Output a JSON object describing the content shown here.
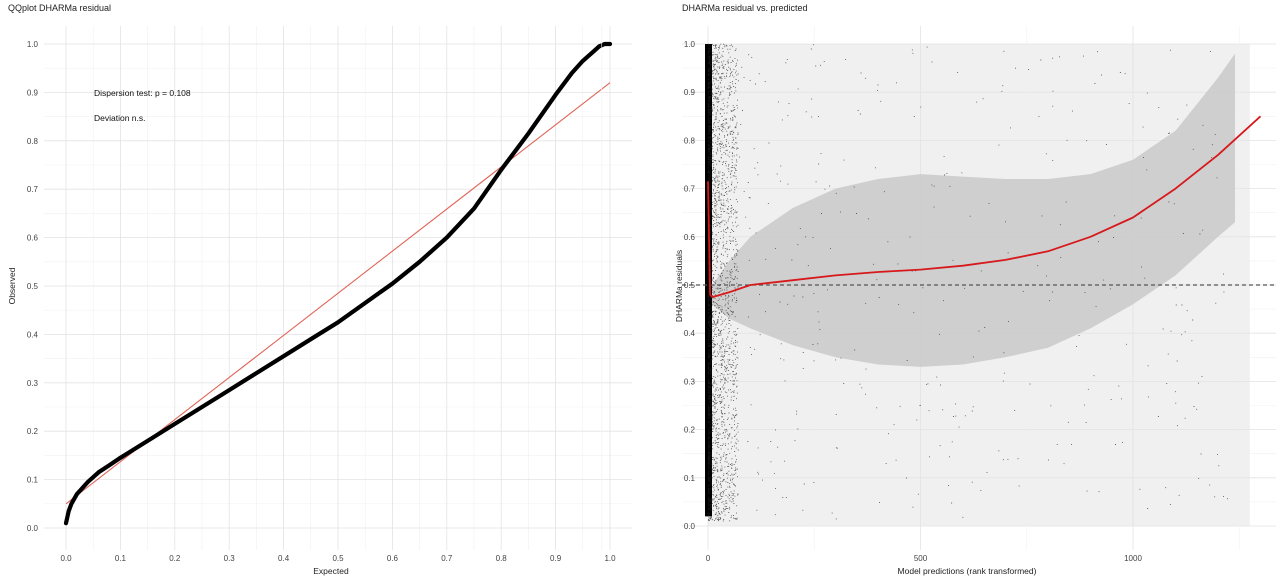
{
  "chart_data": [
    {
      "type": "line",
      "title": "QQplot DHARMa residual",
      "xlabel": "Expected",
      "ylabel": "Observed",
      "xlim": [
        0,
        1
      ],
      "ylim": [
        0,
        1
      ],
      "xticks": [
        "0.0",
        "0.1",
        "0.2",
        "0.3",
        "0.4",
        "0.5",
        "0.6",
        "0.7",
        "0.8",
        "0.9",
        "1.0"
      ],
      "yticks": [
        "0.0",
        "0.1",
        "0.2",
        "0.3",
        "0.4",
        "0.5",
        "0.6",
        "0.7",
        "0.8",
        "0.9",
        "1.0"
      ],
      "grid": true,
      "annotations": [
        "Dispersion test: p = 0.108",
        "Deviation n.s."
      ],
      "series": [
        {
          "color": "#000000",
          "x": [
            0.0,
            0.005,
            0.01,
            0.02,
            0.04,
            0.06,
            0.08,
            0.1,
            0.15,
            0.2,
            0.25,
            0.3,
            0.35,
            0.4,
            0.45,
            0.5,
            0.55,
            0.6,
            0.65,
            0.7,
            0.75,
            0.8,
            0.85,
            0.9,
            0.93,
            0.95,
            0.97,
            0.98,
            0.99,
            1.0
          ],
          "y": [
            0.01,
            0.035,
            0.05,
            0.07,
            0.095,
            0.115,
            0.13,
            0.145,
            0.18,
            0.215,
            0.25,
            0.285,
            0.32,
            0.355,
            0.39,
            0.425,
            0.465,
            0.505,
            0.55,
            0.6,
            0.66,
            0.74,
            0.815,
            0.895,
            0.94,
            0.965,
            0.985,
            0.995,
            1.0,
            1.0
          ]
        },
        {
          "color": "#e0645a",
          "x": [
            0.0,
            1.0
          ],
          "y": [
            0.05,
            0.92
          ]
        }
      ]
    },
    {
      "type": "scatter",
      "title": "DHARMa residual vs. predicted",
      "xlabel": "Model predictions (rank transformed)",
      "ylabel": "DHARMa residuals",
      "xlim": [
        -60,
        1330
      ],
      "ylim": [
        0,
        1
      ],
      "xticks": [
        "0",
        "500",
        "1000"
      ],
      "yticks": [
        "0.0",
        "0.1",
        "0.2",
        "0.3",
        "0.4",
        "0.5",
        "0.6",
        "0.7",
        "0.8",
        "0.9",
        "1.0"
      ],
      "grid": true,
      "reference_line_y": 0.5,
      "points_description": "dense vertical band of residual points near x≈0-25, sparse points across the rest of the range",
      "smooth": {
        "color": "#d7191c",
        "x": [
          0,
          5,
          10,
          50,
          100,
          200,
          300,
          400,
          500,
          600,
          700,
          800,
          900,
          1000,
          1100,
          1200,
          1300
        ],
        "y": [
          0.715,
          0.48,
          0.475,
          0.485,
          0.5,
          0.51,
          0.52,
          0.527,
          0.532,
          0.54,
          0.552,
          0.57,
          0.6,
          0.64,
          0.7,
          0.77,
          0.85
        ]
      },
      "confidence_band": {
        "x": [
          10,
          50,
          100,
          200,
          300,
          400,
          500,
          600,
          700,
          800,
          900,
          1000,
          1100,
          1200,
          1240
        ],
        "upper": [
          0.5,
          0.55,
          0.6,
          0.66,
          0.7,
          0.72,
          0.73,
          0.725,
          0.72,
          0.72,
          0.73,
          0.76,
          0.82,
          0.93,
          0.98
        ],
        "lower": [
          0.46,
          0.43,
          0.41,
          0.375,
          0.35,
          0.335,
          0.33,
          0.335,
          0.35,
          0.37,
          0.41,
          0.46,
          0.52,
          0.6,
          0.63
        ]
      }
    }
  ]
}
